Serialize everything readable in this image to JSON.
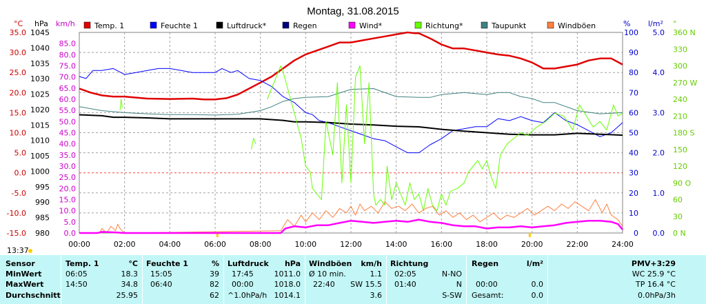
{
  "chart_data": {
    "type": "line",
    "title": "Montag, 31.08.2015",
    "x_ticks": [
      "00:00",
      "02:00",
      "04:00",
      "06:00",
      "08:00",
      "10:00",
      "12:00",
      "14:00",
      "16:00",
      "18:00",
      "20:00",
      "22:00",
      "24:00"
    ],
    "axes": {
      "temp": {
        "unit": "°C",
        "min": -15,
        "max": 35,
        "ticks": [
          "35.0",
          "30.0",
          "25.0",
          "20.0",
          "15.0",
          "10.0",
          "5.0",
          "0.0",
          "-5.0",
          "-10.0",
          "-15.0"
        ],
        "color": "#cc0000"
      },
      "pressure": {
        "unit": "hPa",
        "min": 980,
        "max": 1045,
        "ticks": [
          "1045",
          "1040",
          "1035",
          "1030",
          "1025",
          "1020",
          "1015",
          "1010",
          "1005",
          "1000",
          "995",
          "990",
          "985",
          "980"
        ],
        "color": "#000000"
      },
      "wind": {
        "unit": "km/h",
        "min": 0,
        "max": 90,
        "ticks": [
          "85.0",
          "80.0",
          "75.0",
          "70.0",
          "65.0",
          "60.0",
          "55.0",
          "50.0",
          "45.0",
          "40.0",
          "35.0",
          "30.0",
          "25.0",
          "20.0",
          "15.0",
          "10.0",
          "5.0",
          "0.0"
        ],
        "color": "#cc00cc"
      },
      "humidity": {
        "unit": "%",
        "min": 0,
        "max": 100,
        "ticks": [
          "100",
          "90",
          "80",
          "70",
          "60",
          "50",
          "40",
          "30",
          "20",
          "10",
          "0"
        ],
        "color": "#0000cc"
      },
      "rain": {
        "unit": "l/m²",
        "min": 0,
        "max": 5,
        "ticks": [
          "5.0",
          "4.0",
          "3.0",
          "2.0",
          "1.0",
          "0.0"
        ],
        "color": "#0000cc"
      },
      "direction": {
        "unit": "°",
        "min": 0,
        "max": 360,
        "ticks": [
          "360 N",
          "330",
          "300",
          "270 W",
          "240",
          "210",
          "180 S",
          "150",
          "120",
          "90 O",
          "60",
          "30",
          "0 N"
        ],
        "color": "#66cc00"
      }
    },
    "legend": [
      {
        "label": "Temp. 1",
        "color": "#e00000"
      },
      {
        "label": "Feuchte 1",
        "color": "#0000ff"
      },
      {
        "label": "Luftdruck*",
        "color": "#000000"
      },
      {
        "label": "Regen",
        "color": "#000080"
      },
      {
        "label": "Wind*",
        "color": "#ff00ff"
      },
      {
        "label": "Richtung*",
        "color": "#66ff00"
      },
      {
        "label": "Taupunkt",
        "color": "#408080"
      },
      {
        "label": "Windböen",
        "color": "#ff8040"
      }
    ],
    "series": [
      {
        "name": "Temp. 1",
        "axis": "temp",
        "color": "#e00000",
        "width": 2.5,
        "x": [
          0,
          0.5,
          1,
          1.5,
          2,
          3,
          4,
          5,
          5.5,
          6,
          6.5,
          7,
          7.5,
          8,
          8.5,
          9,
          9.5,
          10,
          10.5,
          11,
          11.5,
          12,
          12.5,
          13,
          13.5,
          14,
          14.5,
          14.83,
          15,
          15.5,
          16,
          16.5,
          17,
          17.5,
          18,
          18.5,
          19,
          19.5,
          20,
          20.5,
          21,
          21.5,
          22,
          22.5,
          23,
          23.5,
          24
        ],
        "y": [
          21.0,
          20.0,
          19.3,
          19.0,
          19.0,
          18.5,
          18.4,
          18.5,
          18.3,
          18.3,
          18.6,
          19.5,
          21.0,
          22.5,
          24.0,
          26.0,
          28.0,
          29.5,
          30.5,
          31.5,
          32.5,
          32.5,
          33.0,
          33.5,
          34.0,
          34.5,
          35.0,
          34.8,
          34.8,
          33.5,
          32.0,
          31.0,
          31.0,
          30.5,
          30.0,
          29.5,
          29.2,
          28.5,
          27.5,
          26.0,
          26.0,
          26.5,
          27.0,
          28.0,
          28.5,
          28.5,
          27.0
        ]
      },
      {
        "name": "Taupunkt",
        "axis": "temp",
        "color": "#408080",
        "width": 1,
        "x": [
          0,
          1,
          2,
          3,
          4,
          5,
          6,
          7,
          8,
          8.5,
          9,
          9.5,
          10,
          11,
          12,
          13,
          14,
          15,
          15.5,
          16,
          17,
          18,
          18.5,
          19,
          19.5,
          20,
          20.5,
          21,
          22,
          23,
          24
        ],
        "y": [
          16.5,
          15.5,
          15.0,
          14.7,
          14.5,
          14.5,
          14.4,
          14.6,
          15.5,
          16.5,
          17.8,
          18.5,
          18.8,
          19.0,
          20.8,
          21.0,
          19.0,
          18.8,
          18.8,
          19.5,
          20.0,
          19.5,
          20.0,
          20.0,
          19.0,
          18.5,
          17.5,
          17.5,
          15.5,
          14.7,
          15.0
        ]
      },
      {
        "name": "Feuchte 1",
        "axis": "humidity",
        "color": "#0000ff",
        "width": 1,
        "x": [
          0,
          0.3,
          0.6,
          1,
          1.5,
          2,
          2.5,
          3,
          3.5,
          4,
          4.5,
          5,
          5.5,
          6,
          6.3,
          6.7,
          7,
          7.5,
          8,
          8.5,
          9,
          9.5,
          10,
          10.3,
          10.6,
          11,
          11.5,
          12,
          12.5,
          13,
          13.5,
          14,
          14.5,
          15,
          15.5,
          16,
          16.5,
          17,
          17.5,
          18,
          18.5,
          19,
          19.5,
          20,
          20.5,
          21,
          21.5,
          22,
          22.5,
          23,
          23.5,
          24
        ],
        "y": [
          78,
          77,
          81,
          81,
          82,
          79,
          80,
          81,
          82,
          82,
          81,
          80,
          80,
          80,
          82,
          80,
          81,
          77,
          76,
          73,
          68,
          65,
          60,
          59,
          56,
          55,
          53,
          51,
          49,
          47,
          46,
          43,
          40,
          40,
          44,
          47,
          51,
          52,
          53,
          53,
          57,
          56,
          58,
          56,
          55,
          60,
          56,
          54,
          51,
          48,
          50,
          55
        ]
      },
      {
        "name": "Luftdruck*",
        "axis": "pressure",
        "color": "#000000",
        "width": 2,
        "x": [
          0,
          1,
          1.5,
          2,
          3,
          4,
          5,
          6,
          7,
          8,
          9,
          9.5,
          10,
          11,
          12,
          13,
          14,
          15,
          15.5,
          16,
          17,
          18,
          19,
          20,
          21,
          22,
          23,
          24
        ],
        "y": [
          1018.3,
          1018.0,
          1017.5,
          1017.5,
          1017.3,
          1017.0,
          1017.0,
          1017.0,
          1017.0,
          1017.0,
          1016.5,
          1016.0,
          1016.0,
          1015.8,
          1015.3,
          1015.0,
          1014.6,
          1014.4,
          1014.0,
          1013.6,
          1013.0,
          1012.5,
          1012.0,
          1011.8,
          1011.8,
          1012.3,
          1012.0,
          1011.7
        ]
      },
      {
        "name": "Richtung*",
        "axis": "direction",
        "color": "#66ff00",
        "width": 1,
        "segments": [
          {
            "x": [
              1.8,
              1.85,
              1.9
            ],
            "y": [
              220,
              240,
              225
            ]
          },
          {
            "x": [
              7.6,
              7.7,
              7.8
            ],
            "y": [
              150,
              170,
              160
            ]
          },
          {
            "x": [
              8.3,
              8.6,
              8.9,
              9.0,
              9.2,
              9.4,
              9.6,
              9.8,
              10.0,
              10.2,
              10.3,
              10.5,
              10.7,
              10.9,
              11.2,
              11.4,
              11.6,
              11.8,
              12.0,
              12.2,
              12.4,
              12.6,
              12.8,
              13.0,
              13.1,
              13.3,
              13.5,
              13.6,
              13.8,
              14.0,
              14.2,
              14.4,
              14.6,
              14.8,
              15.0,
              15.2,
              15.4,
              15.6,
              15.8,
              16.0,
              16.2,
              16.4,
              16.7,
              17.0,
              17.2,
              17.4,
              17.6,
              17.8,
              18.0,
              18.2,
              18.4,
              18.6,
              18.9,
              19.2,
              19.5,
              19.8,
              20.2,
              20.6,
              21.0,
              21.4,
              21.8,
              22.1,
              22.4,
              22.7,
              23.0,
              23.3,
              23.6,
              23.8,
              24.0
            ],
            "y": [
              240,
              270,
              300,
              290,
              260,
              230,
              200,
              170,
              120,
              110,
              80,
              70,
              60,
              200,
              140,
              270,
              90,
              230,
              90,
              280,
              300,
              160,
              270,
              70,
              50,
              60,
              50,
              120,
              60,
              90,
              70,
              50,
              90,
              60,
              70,
              40,
              80,
              50,
              40,
              70,
              50,
              75,
              80,
              90,
              110,
              120,
              130,
              115,
              130,
              100,
              80,
              140,
              160,
              170,
              180,
              175,
              190,
              200,
              215,
              210,
              185,
              230,
              210,
              190,
              200,
              185,
              230,
              210,
              215
            ]
          }
        ]
      },
      {
        "name": "Windböen",
        "axis": "wind",
        "color": "#ff8040",
        "width": 1,
        "x": [
          0,
          0.9,
          1.0,
          1.2,
          1.4,
          1.6,
          1.7,
          1.8,
          1.9,
          2.0,
          8.9,
          9.2,
          9.5,
          9.8,
          10.0,
          10.3,
          10.6,
          10.9,
          11.2,
          11.5,
          11.8,
          12.0,
          12.2,
          12.4,
          12.6,
          12.9,
          13.2,
          13.5,
          13.8,
          14.1,
          14.4,
          14.7,
          15.0,
          15.3,
          15.6,
          15.9,
          16.2,
          16.5,
          16.8,
          17.1,
          17.4,
          17.7,
          18.0,
          18.3,
          18.6,
          18.9,
          19.2,
          19.5,
          19.8,
          20.1,
          20.4,
          20.7,
          21.0,
          21.3,
          21.6,
          21.9,
          22.2,
          22.5,
          22.8,
          23.1,
          23.3,
          23.5,
          23.8,
          24.0
        ],
        "y": [
          0,
          0,
          2,
          0,
          3,
          1,
          4,
          2,
          1,
          0,
          1,
          6,
          3,
          8,
          5,
          9,
          6,
          10,
          7,
          11,
          9,
          12,
          8,
          13,
          10,
          12,
          9,
          14,
          11,
          12,
          10,
          13,
          9,
          11,
          12,
          8,
          10,
          7,
          9,
          6,
          8,
          5,
          7,
          9,
          6,
          8,
          7,
          9,
          11,
          8,
          10,
          12,
          10,
          13,
          11,
          14,
          12,
          10,
          15,
          9,
          13,
          8,
          6,
          3
        ]
      },
      {
        "name": "Wind*",
        "axis": "wind",
        "color": "#ff00ff",
        "width": 2.5,
        "x": [
          0,
          0.8,
          1,
          1.5,
          2,
          8.9,
          9.1,
          9.5,
          10.0,
          10.5,
          11.0,
          11.5,
          12.0,
          12.5,
          13.0,
          13.5,
          14.0,
          14.5,
          15.0,
          15.5,
          16.0,
          16.5,
          17.0,
          17.5,
          18.0,
          18.5,
          19.0,
          19.5,
          20.0,
          20.5,
          21.0,
          21.5,
          22.0,
          22.5,
          23.0,
          23.5,
          23.8,
          24.0
        ],
        "y": [
          0,
          0,
          0.5,
          0.3,
          0,
          0,
          2,
          3,
          2.5,
          3.5,
          3.5,
          4.5,
          5.5,
          5.0,
          4.5,
          5.0,
          5.5,
          5.0,
          6.0,
          5.0,
          4.5,
          3.5,
          3.0,
          3.0,
          2.0,
          2.5,
          2.5,
          3.0,
          2.5,
          3.0,
          3.5,
          4.5,
          5.0,
          5.5,
          5.5,
          5.0,
          4.0,
          1.5
        ]
      }
    ]
  },
  "timestamp": "13:37",
  "stats": {
    "header": {
      "sensor": "Sensor",
      "temp": "Temp. 1",
      "temp_unit": "°C",
      "hum": "Feuchte 1",
      "hum_unit": "%",
      "press": "Luftdruck",
      "press_unit": "hPa",
      "gust": "Windböen",
      "gust_unit": "km/h",
      "dir": "Richtung",
      "rain": "Regen",
      "rain_unit": "l/m²",
      "pmv": "PMV+3:29"
    },
    "rows": [
      {
        "label": "MinWert",
        "temp_t": "06:05",
        "temp_v": "18.3",
        "hum_t": "15:05",
        "hum_v": "39",
        "press_t": "17:45",
        "press_v": "1011.0",
        "gust_t": "Ø 10 min.",
        "gust_v": "1.1",
        "dir_t": "02:05",
        "dir_v": "N-NO",
        "rain_t": "",
        "rain_v": "",
        "extra": "WC 25.9 °C"
      },
      {
        "label": "MaxWert",
        "temp_t": "14:50",
        "temp_v": "34.8",
        "hum_t": "06:40",
        "hum_v": "82",
        "press_t": "00:00",
        "press_v": "1018.0",
        "gust_t": "22:40",
        "gust_v": "SW 15.5",
        "dir_t": "01:40",
        "dir_v": "N",
        "rain_t": "00:00",
        "rain_v": "0.0",
        "extra": "TP 16.4 °C"
      },
      {
        "label": "Durchschnitt",
        "temp_t": "",
        "temp_v": "25.95",
        "hum_t": "",
        "hum_v": "62",
        "press_t": "^1.0hPa/h",
        "press_v": "1014.1",
        "gust_t": "",
        "gust_v": "3.6",
        "dir_t": "",
        "dir_v": "S-SW",
        "rain_t": "Gesamt:",
        "rain_v": "0.0",
        "extra": "0.0hPa/3h"
      }
    ]
  }
}
